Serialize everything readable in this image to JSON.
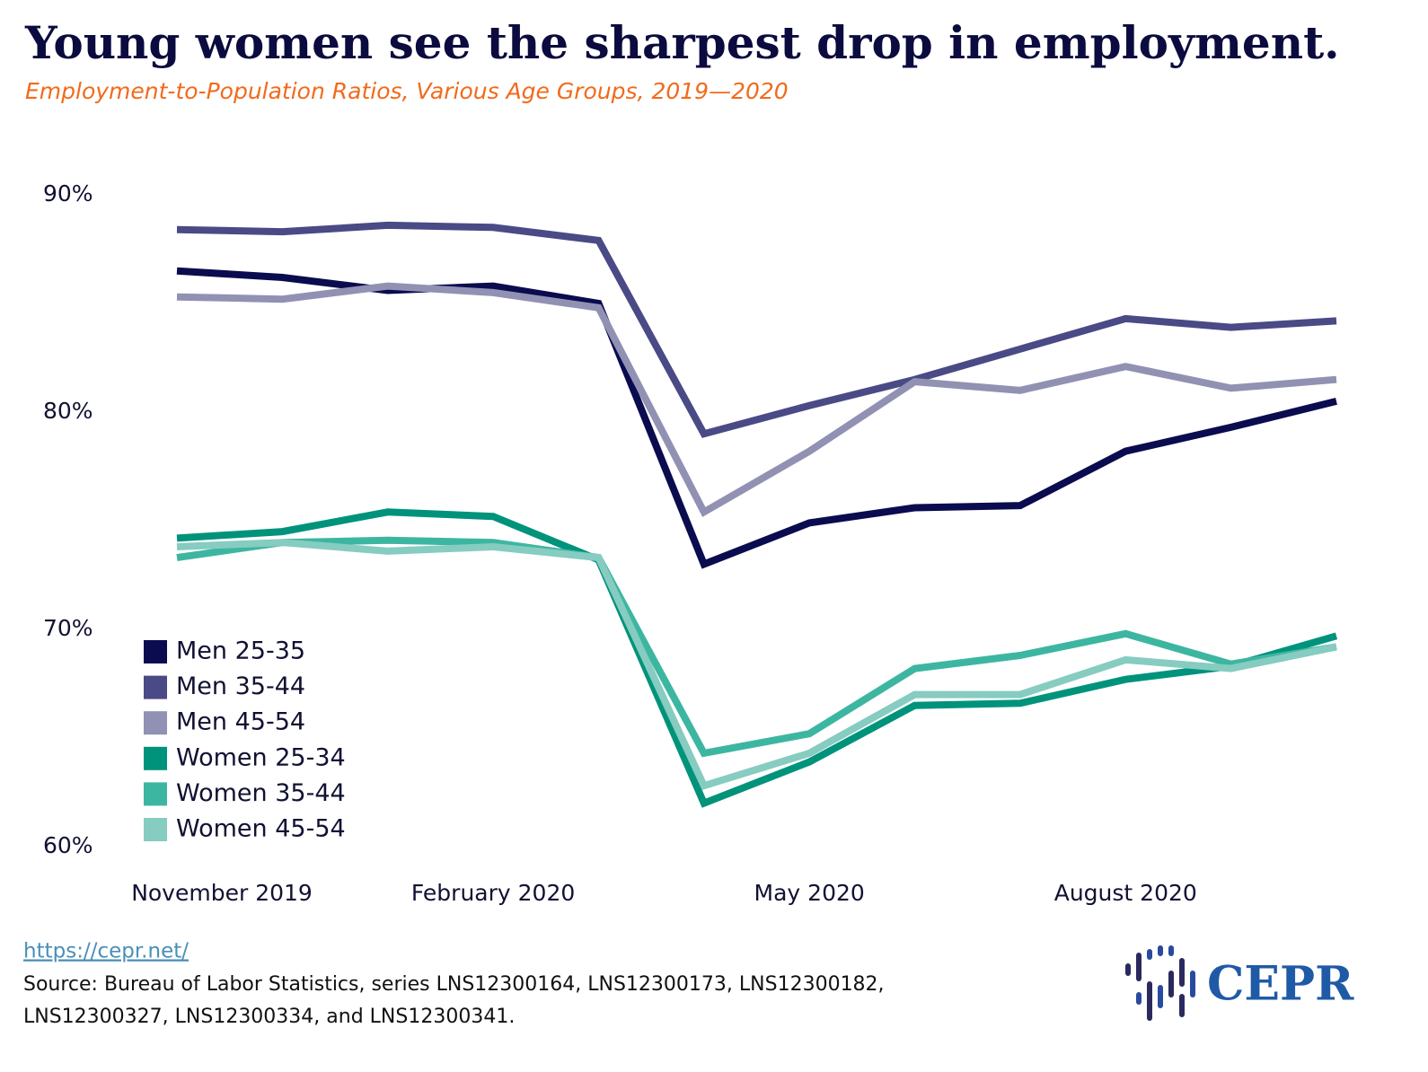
{
  "chart_data": {
    "type": "line",
    "title": "Young women see the sharpest drop in employment.",
    "subtitle": "Employment-to-Population Ratios, Various Age Groups, 2019—2020",
    "categories": [
      "November 2019",
      null,
      null,
      "February 2020",
      null,
      null,
      "May 2020",
      null,
      null,
      "August 2020",
      null,
      null
    ],
    "series": [
      {
        "name": "Men 25-35",
        "color": "#0b0b4f",
        "values": [
          86.5,
          86.2,
          85.6,
          85.8,
          85.0,
          73.0,
          74.9,
          75.6,
          75.7,
          78.2,
          79.3,
          80.5
        ]
      },
      {
        "name": "Men 35-44",
        "color": "#4a4a86",
        "values": [
          88.4,
          88.3,
          88.6,
          88.5,
          87.9,
          79.0,
          80.3,
          81.5,
          82.9,
          84.3,
          83.9,
          84.2
        ]
      },
      {
        "name": "Men 45-54",
        "color": "#9191b3",
        "values": [
          85.3,
          85.2,
          85.8,
          85.5,
          84.8,
          75.4,
          78.2,
          81.4,
          81.0,
          82.1,
          81.1,
          81.5
        ]
      },
      {
        "name": "Women 25-34",
        "color": "#00937b",
        "values": [
          74.2,
          74.5,
          75.4,
          75.2,
          73.2,
          62.0,
          63.9,
          66.5,
          66.6,
          67.7,
          68.3,
          69.7
        ]
      },
      {
        "name": "Women 35-44",
        "color": "#3db6a1",
        "values": [
          73.3,
          74.0,
          74.1,
          74.0,
          73.3,
          64.3,
          65.2,
          68.2,
          68.8,
          69.8,
          68.4,
          69.2
        ]
      },
      {
        "name": "Women 45-54",
        "color": "#86ccc0",
        "values": [
          73.8,
          74.0,
          73.6,
          73.8,
          73.3,
          62.8,
          64.3,
          67.0,
          67.0,
          68.6,
          68.2,
          69.2
        ]
      }
    ],
    "ylim": [
      60,
      90
    ],
    "yticks": [
      {
        "value": 60,
        "label": "60%"
      },
      {
        "value": 70,
        "label": "70%"
      },
      {
        "value": 80,
        "label": "80%"
      },
      {
        "value": 90,
        "label": "90%"
      }
    ],
    "grid": false,
    "legend": "lower left",
    "link": "https://cepr.net/",
    "source": [
      "Source: Bureau of Labor Statistics, series LNS12300164, LNS12300173, LNS12300182,",
      "LNS12300327, LNS12300334, and LNS12300341."
    ],
    "logo": "CEPR"
  }
}
